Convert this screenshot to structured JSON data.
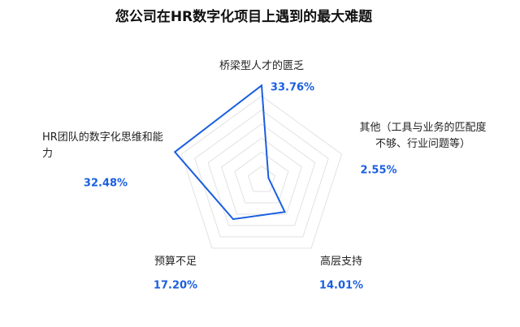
{
  "chart_data": {
    "type": "radar",
    "title": "您公司在HR数字化项目上遇到的最大难题",
    "categories": [
      "桥梁型人才的匮乏",
      "其他（工具与业务的匹配度不够、行业问题等）",
      "高层支持",
      "预算不足",
      "HR团队的数字化思维和能力"
    ],
    "values": [
      33.76,
      2.55,
      14.01,
      17.2,
      32.48
    ],
    "value_labels": [
      "33.76%",
      "2.55%",
      "14.01%",
      "17.20%",
      "32.48%"
    ],
    "color": "#1a5fe0",
    "ylim": [
      0,
      35
    ],
    "yticks": [
      5,
      10,
      15,
      20,
      25,
      30
    ],
    "grid": true
  }
}
